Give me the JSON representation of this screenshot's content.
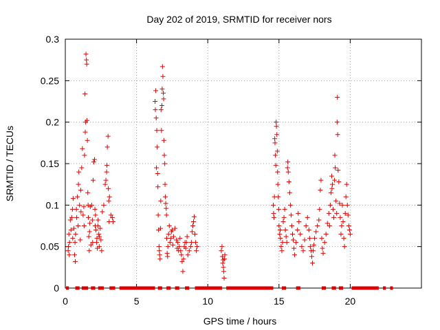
{
  "chart_data": {
    "type": "scatter",
    "title": "Day 202 of 2019, SRMTID for receiver nors",
    "xlabel": "GPS time / hours",
    "ylabel": "SRMTID / TECUs",
    "xlim": [
      0,
      25
    ],
    "ylim": [
      0,
      0.3
    ],
    "x_ticks": [
      0,
      5,
      10,
      15,
      20
    ],
    "x_tick_labels": [
      "0",
      "5",
      "10",
      "15",
      "20"
    ],
    "y_ticks": [
      0,
      0.05,
      0.1,
      0.15,
      0.2,
      0.25,
      0.3
    ],
    "y_tick_labels": [
      "0",
      "0.05",
      "0.1",
      "0.15",
      "0.2",
      "0.25",
      "0.3"
    ],
    "grid": true,
    "marker": "+",
    "color": "#dd0000",
    "zero_segments": [
      [
        0.05,
        0.25
      ],
      [
        0.7,
        1.0
      ],
      [
        1.15,
        1.6
      ],
      [
        1.8,
        2.1
      ],
      [
        2.3,
        2.7
      ],
      [
        3.1,
        3.5
      ],
      [
        3.8,
        6.3
      ],
      [
        6.5,
        6.8
      ],
      [
        7.1,
        7.4
      ],
      [
        7.7,
        8.0
      ],
      [
        8.4,
        8.7
      ],
      [
        9.1,
        11.0
      ],
      [
        11.3,
        14.6
      ],
      [
        15.2,
        15.5
      ],
      [
        16.2,
        16.5
      ],
      [
        18.0,
        18.3
      ],
      [
        18.7,
        19.0
      ],
      [
        19.2,
        19.5
      ],
      [
        20.1,
        22.0
      ],
      [
        22.3,
        22.5
      ],
      [
        22.8,
        23.0
      ]
    ],
    "series": [
      {
        "name": "SRMTID",
        "points": [
          [
            0.2,
            0.045
          ],
          [
            0.22,
            0.05
          ],
          [
            0.25,
            0.065
          ],
          [
            0.28,
            0.04
          ],
          [
            0.3,
            0.055
          ],
          [
            0.35,
            0.082
          ],
          [
            0.4,
            0.07
          ],
          [
            0.45,
            0.085
          ],
          [
            0.5,
            0.095
          ],
          [
            0.52,
            0.06
          ],
          [
            0.55,
            0.108
          ],
          [
            0.6,
            0.072
          ],
          [
            0.65,
            0.04
          ],
          [
            0.68,
            0.055
          ],
          [
            0.7,
            0.032
          ],
          [
            0.72,
            0.065
          ],
          [
            0.78,
            0.095
          ],
          [
            0.8,
            0.085
          ],
          [
            0.85,
            0.11
          ],
          [
            0.9,
            0.075
          ],
          [
            0.92,
            0.125
          ],
          [
            0.95,
            0.14
          ],
          [
            1.0,
            0.1
          ],
          [
            1.05,
            0.058
          ],
          [
            1.08,
            0.118
          ],
          [
            1.1,
            0.092
          ],
          [
            1.15,
            0.145
          ],
          [
            1.2,
            0.168
          ],
          [
            1.25,
            0.088
          ],
          [
            1.3,
            0.098
          ],
          [
            1.32,
            0.075
          ],
          [
            1.35,
            0.16
          ],
          [
            1.38,
            0.234
          ],
          [
            1.4,
            0.188
          ],
          [
            1.42,
            0.2
          ],
          [
            1.45,
            0.282
          ],
          [
            1.48,
            0.275
          ],
          [
            1.5,
            0.27
          ],
          [
            1.52,
            0.202
          ],
          [
            1.55,
            0.178
          ],
          [
            1.58,
            0.115
          ],
          [
            1.6,
            0.1
          ],
          [
            1.62,
            0.085
          ],
          [
            1.65,
            0.062
          ],
          [
            1.68,
            0.045
          ],
          [
            1.7,
            0.068
          ],
          [
            1.72,
            0.078
          ],
          [
            1.75,
            0.098
          ],
          [
            1.8,
            0.052
          ],
          [
            1.85,
            0.1
          ],
          [
            1.9,
            0.082
          ],
          [
            1.92,
            0.055
          ],
          [
            1.95,
            0.13
          ],
          [
            2.0,
            0.152
          ],
          [
            2.05,
            0.155
          ],
          [
            2.08,
            0.095
          ],
          [
            2.1,
            0.075
          ],
          [
            2.12,
            0.088
          ],
          [
            2.15,
            0.07
          ],
          [
            2.2,
            0.055
          ],
          [
            2.22,
            0.06
          ],
          [
            2.25,
            0.048
          ],
          [
            2.28,
            0.075
          ],
          [
            2.3,
            0.082
          ],
          [
            2.35,
            0.065
          ],
          [
            2.38,
            0.05
          ],
          [
            2.4,
            0.062
          ],
          [
            2.45,
            0.072
          ],
          [
            2.5,
            0.058
          ],
          [
            2.55,
            0.045
          ],
          [
            2.6,
            0.092
          ],
          [
            2.7,
            0.1
          ],
          [
            2.8,
            0.125
          ],
          [
            2.85,
            0.13
          ],
          [
            2.9,
            0.14
          ],
          [
            2.92,
            0.148
          ],
          [
            2.95,
            0.17
          ],
          [
            3.0,
            0.183
          ],
          [
            3.02,
            0.12
          ],
          [
            3.05,
            0.105
          ],
          [
            3.08,
            0.08
          ],
          [
            3.1,
            0.11
          ],
          [
            3.2,
            0.088
          ],
          [
            3.3,
            0.085
          ],
          [
            3.35,
            0.08
          ],
          [
            6.3,
            0.225
          ],
          [
            6.32,
            0.215
          ],
          [
            6.35,
            0.238
          ],
          [
            6.38,
            0.205
          ],
          [
            6.4,
            0.145
          ],
          [
            6.42,
            0.19
          ],
          [
            6.45,
            0.17
          ],
          [
            6.48,
            0.138
          ],
          [
            6.5,
            0.122
          ],
          [
            6.52,
            0.088
          ],
          [
            6.55,
            0.07
          ],
          [
            6.58,
            0.05
          ],
          [
            6.6,
            0.045
          ],
          [
            6.62,
            0.04
          ],
          [
            6.65,
            0.035
          ],
          [
            6.68,
            0.072
          ],
          [
            6.7,
            0.105
          ],
          [
            6.72,
            0.215
          ],
          [
            6.75,
            0.19
          ],
          [
            6.78,
            0.22
          ],
          [
            6.8,
            0.24
          ],
          [
            6.82,
            0.267
          ],
          [
            6.85,
            0.255
          ],
          [
            6.88,
            0.235
          ],
          [
            6.9,
            0.228
          ],
          [
            6.92,
            0.178
          ],
          [
            6.95,
            0.16
          ],
          [
            6.98,
            0.15
          ],
          [
            7.0,
            0.125
          ],
          [
            7.02,
            0.11
          ],
          [
            7.05,
            0.102
          ],
          [
            7.08,
            0.096
          ],
          [
            7.1,
            0.088
          ],
          [
            7.12,
            0.06
          ],
          [
            7.15,
            0.042
          ],
          [
            7.18,
            0.038
          ],
          [
            7.2,
            0.05
          ],
          [
            7.25,
            0.065
          ],
          [
            7.3,
            0.075
          ],
          [
            7.35,
            0.055
          ],
          [
            7.4,
            0.06
          ],
          [
            7.45,
            0.068
          ],
          [
            7.5,
            0.07
          ],
          [
            7.55,
            0.052
          ],
          [
            7.6,
            0.062
          ],
          [
            7.7,
            0.072
          ],
          [
            7.8,
            0.058
          ],
          [
            7.85,
            0.048
          ],
          [
            7.9,
            0.055
          ],
          [
            7.95,
            0.045
          ],
          [
            8.0,
            0.05
          ],
          [
            8.05,
            0.06
          ],
          [
            8.1,
            0.045
          ],
          [
            8.15,
            0.04
          ],
          [
            8.2,
            0.032
          ],
          [
            8.25,
            0.02
          ],
          [
            8.3,
            0.035
          ],
          [
            8.35,
            0.05
          ],
          [
            8.4,
            0.055
          ],
          [
            8.45,
            0.048
          ],
          [
            8.5,
            0.055
          ],
          [
            8.55,
            0.062
          ],
          [
            8.6,
            0.04
          ],
          [
            8.7,
            0.045
          ],
          [
            8.8,
            0.05
          ],
          [
            8.85,
            0.055
          ],
          [
            8.9,
            0.068
          ],
          [
            8.95,
            0.075
          ],
          [
            9.0,
            0.08
          ],
          [
            9.05,
            0.086
          ],
          [
            9.1,
            0.065
          ],
          [
            9.15,
            0.055
          ],
          [
            9.2,
            0.045
          ],
          [
            9.25,
            0.05
          ],
          [
            10.95,
            0.045
          ],
          [
            11.0,
            0.05
          ],
          [
            11.02,
            0.038
          ],
          [
            11.05,
            0.03
          ],
          [
            11.08,
            0.034
          ],
          [
            11.1,
            0.025
          ],
          [
            11.12,
            0.02
          ],
          [
            11.15,
            0.012
          ],
          [
            11.18,
            0.035
          ],
          [
            11.2,
            0.04
          ],
          [
            14.6,
            0.1
          ],
          [
            14.62,
            0.09
          ],
          [
            14.65,
            0.085
          ],
          [
            14.68,
            0.11
          ],
          [
            14.7,
            0.18
          ],
          [
            14.72,
            0.175
          ],
          [
            14.75,
            0.16
          ],
          [
            14.78,
            0.148
          ],
          [
            14.8,
            0.2
          ],
          [
            14.82,
            0.195
          ],
          [
            14.85,
            0.185
          ],
          [
            14.88,
            0.165
          ],
          [
            14.9,
            0.14
          ],
          [
            14.92,
            0.125
          ],
          [
            14.95,
            0.11
          ],
          [
            14.98,
            0.095
          ],
          [
            15.0,
            0.075
          ],
          [
            15.05,
            0.065
          ],
          [
            15.08,
            0.07
          ],
          [
            15.1,
            0.06
          ],
          [
            15.15,
            0.05
          ],
          [
            15.2,
            0.045
          ],
          [
            15.25,
            0.055
          ],
          [
            15.3,
            0.08
          ],
          [
            15.35,
            0.085
          ],
          [
            15.4,
            0.095
          ],
          [
            15.45,
            0.07
          ],
          [
            15.5,
            0.062
          ],
          [
            15.55,
            0.055
          ],
          [
            15.6,
            0.145
          ],
          [
            15.62,
            0.152
          ],
          [
            15.65,
            0.14
          ],
          [
            15.7,
            0.128
          ],
          [
            15.75,
            0.115
          ],
          [
            15.8,
            0.1
          ],
          [
            15.85,
            0.088
          ],
          [
            15.9,
            0.075
          ],
          [
            15.95,
            0.065
          ],
          [
            16.0,
            0.058
          ],
          [
            16.05,
            0.048
          ],
          [
            16.1,
            0.04
          ],
          [
            16.2,
            0.055
          ],
          [
            16.3,
            0.07
          ],
          [
            16.35,
            0.09
          ],
          [
            16.4,
            0.08
          ],
          [
            16.5,
            0.065
          ],
          [
            16.6,
            0.05
          ],
          [
            16.7,
            0.045
          ],
          [
            16.8,
            0.058
          ],
          [
            16.9,
            0.075
          ],
          [
            17.0,
            0.085
          ],
          [
            17.1,
            0.07
          ],
          [
            17.15,
            0.06
          ],
          [
            17.2,
            0.05
          ],
          [
            17.25,
            0.045
          ],
          [
            17.3,
            0.038
          ],
          [
            17.35,
            0.03
          ],
          [
            17.4,
            0.045
          ],
          [
            17.45,
            0.052
          ],
          [
            17.5,
            0.06
          ],
          [
            17.6,
            0.068
          ],
          [
            17.7,
            0.075
          ],
          [
            17.8,
            0.082
          ],
          [
            17.85,
            0.095
          ],
          [
            17.9,
            0.118
          ],
          [
            17.95,
            0.13
          ],
          [
            18.0,
            0.06
          ],
          [
            18.05,
            0.048
          ],
          [
            18.1,
            0.042
          ],
          [
            18.2,
            0.055
          ],
          [
            18.3,
            0.065
          ],
          [
            18.4,
            0.078
          ],
          [
            18.5,
            0.09
          ],
          [
            18.55,
            0.075
          ],
          [
            18.6,
            0.1
          ],
          [
            18.65,
            0.115
          ],
          [
            18.7,
            0.135
          ],
          [
            18.72,
            0.12
          ],
          [
            18.75,
            0.125
          ],
          [
            18.8,
            0.095
          ],
          [
            18.85,
            0.085
          ],
          [
            18.9,
            0.13
          ],
          [
            18.92,
            0.16
          ],
          [
            18.95,
            0.145
          ],
          [
            19.0,
            0.105
          ],
          [
            19.05,
            0.09
          ],
          [
            19.08,
            0.2
          ],
          [
            19.1,
            0.23
          ],
          [
            19.12,
            0.185
          ],
          [
            19.15,
            0.142
          ],
          [
            19.2,
            0.128
          ],
          [
            19.25,
            0.102
          ],
          [
            19.3,
            0.085
          ],
          [
            19.35,
            0.065
          ],
          [
            19.4,
            0.075
          ],
          [
            19.45,
            0.1
          ],
          [
            19.5,
            0.08
          ],
          [
            19.55,
            0.06
          ],
          [
            19.6,
            0.05
          ],
          [
            19.65,
            0.09
          ],
          [
            19.7,
            0.11
          ],
          [
            19.75,
            0.125
          ],
          [
            19.8,
            0.1
          ],
          [
            19.85,
            0.088
          ],
          [
            19.9,
            0.075
          ],
          [
            19.95,
            0.07
          ],
          [
            20.0,
            0.065
          ]
        ]
      }
    ]
  }
}
